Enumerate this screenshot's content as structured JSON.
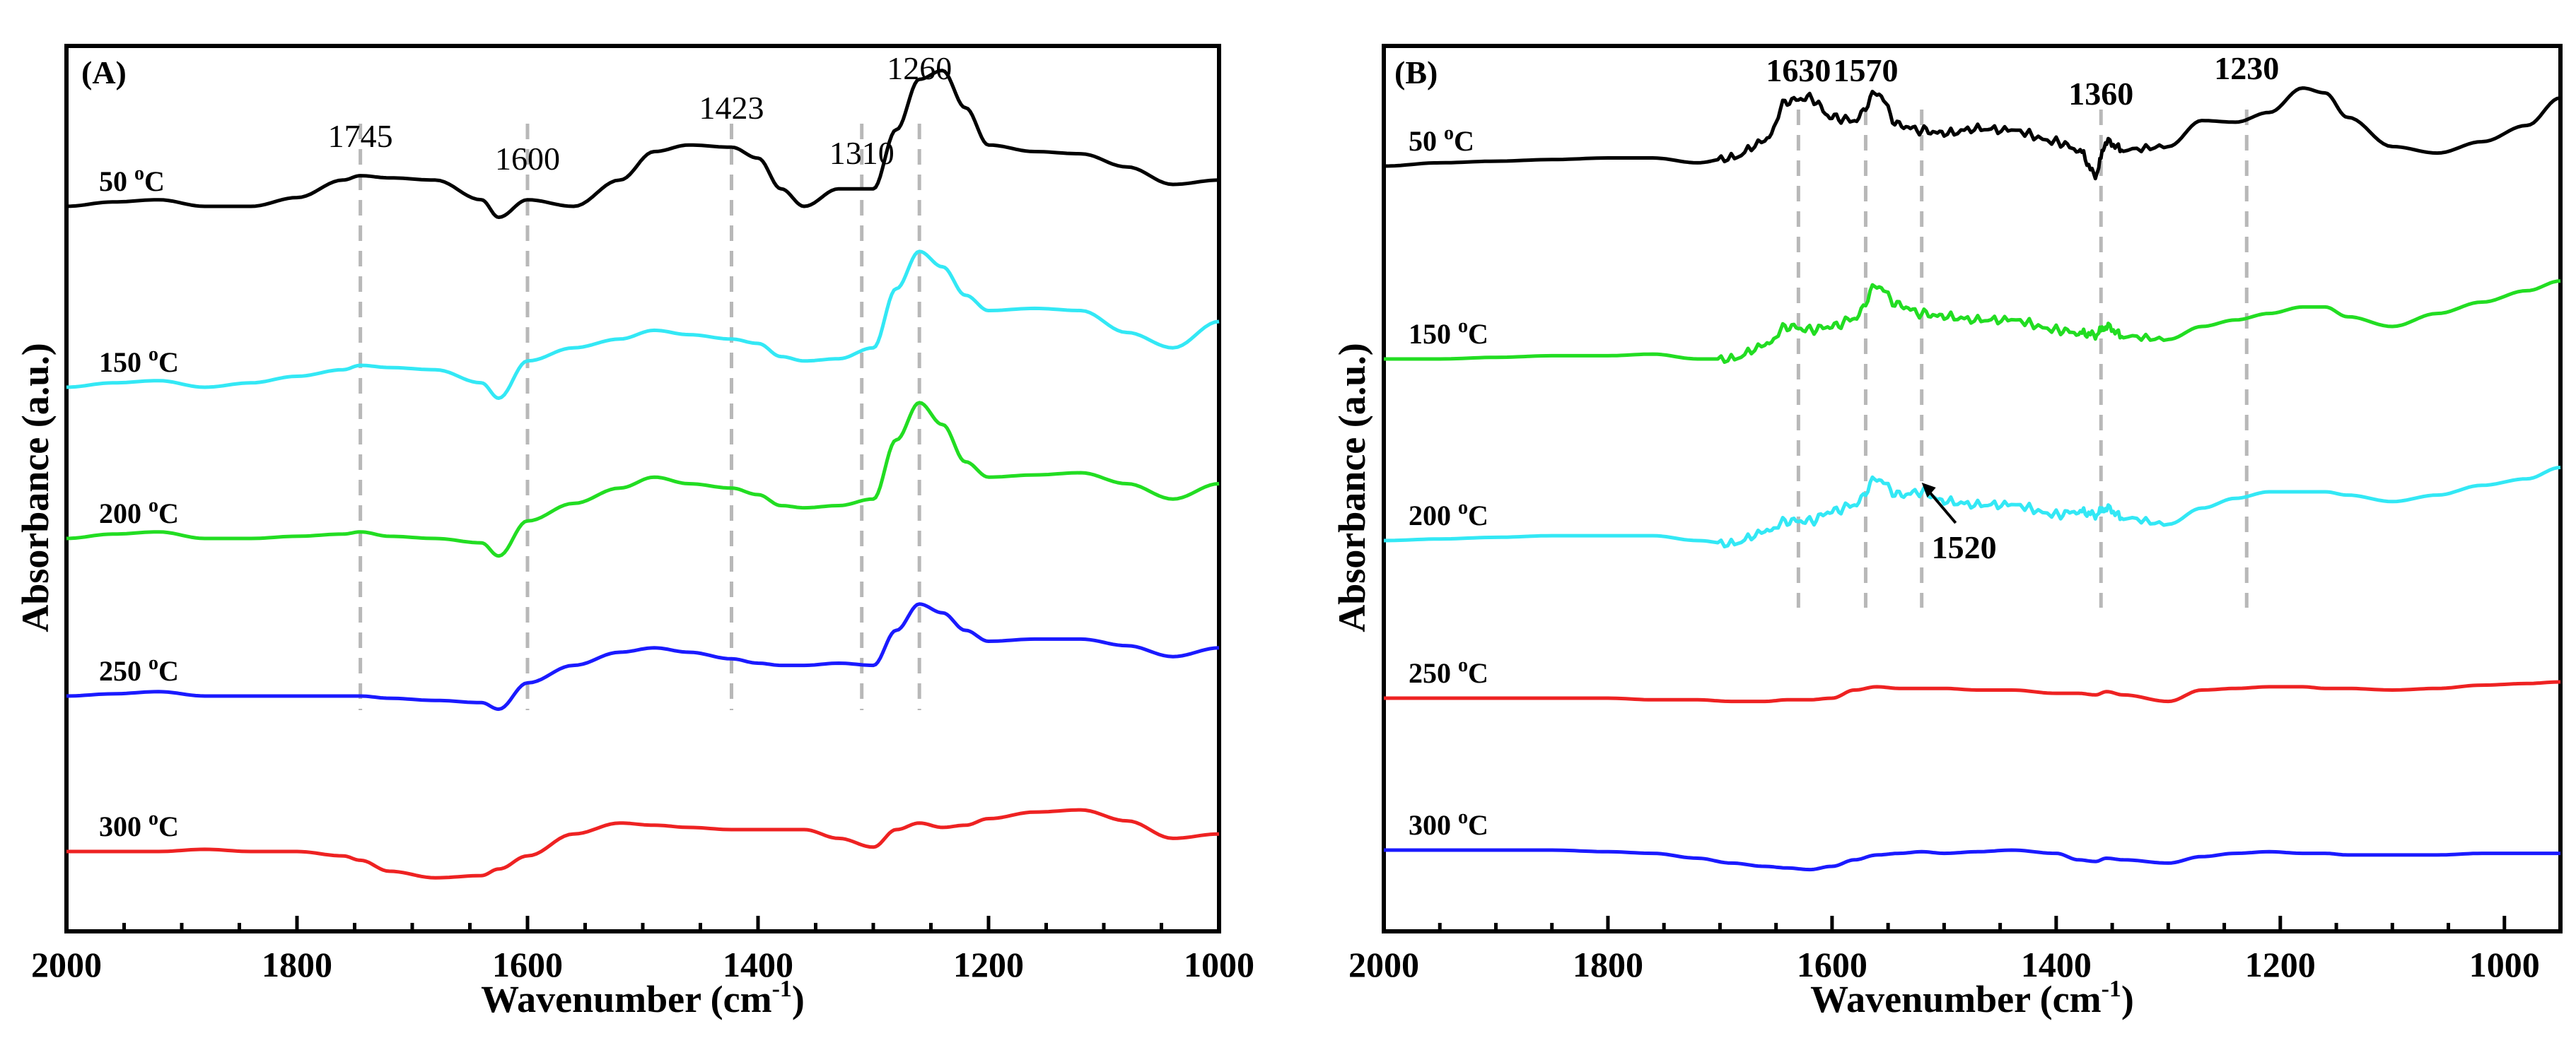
{
  "chart_data": [
    {
      "type": "line",
      "panel_label": "(A)",
      "xlabel_main": "Wavenumber (cm",
      "xlabel_sup": "-1",
      "xlabel_end": ")",
      "ylabel": "Absorbance (a.u.)",
      "xlim": [
        2000,
        1000
      ],
      "x_ticks": [
        "2000",
        "1800",
        "1600",
        "1400",
        "1200",
        "1000"
      ],
      "x_tick_values": [
        2000,
        1800,
        1600,
        1400,
        1200,
        1000
      ],
      "peak_lines": [
        1745,
        1600,
        1423,
        1310,
        1260
      ],
      "peak_labels": [
        "1745",
        "1600",
        "1423",
        "1310",
        "1260"
      ],
      "series": [
        {
          "name": "50 °C",
          "temp": "50",
          "unit_sup": "o",
          "unit": "C",
          "color": "#000000",
          "x": [
            2000,
            1960,
            1920,
            1880,
            1840,
            1800,
            1760,
            1745,
            1720,
            1680,
            1640,
            1625,
            1600,
            1560,
            1520,
            1490,
            1460,
            1423,
            1400,
            1380,
            1360,
            1330,
            1300,
            1280,
            1260,
            1240,
            1220,
            1200,
            1160,
            1120,
            1080,
            1040,
            1000
          ],
          "y": [
            0.0,
            0.02,
            0.03,
            0.0,
            0.0,
            0.04,
            0.12,
            0.14,
            0.13,
            0.12,
            0.03,
            -0.05,
            0.03,
            0.0,
            0.12,
            0.25,
            0.28,
            0.27,
            0.22,
            0.08,
            0.0,
            0.08,
            0.08,
            0.35,
            0.58,
            0.62,
            0.45,
            0.28,
            0.25,
            0.24,
            0.18,
            0.1,
            0.12
          ]
        },
        {
          "name": "150 °C",
          "temp": "150",
          "unit_sup": "o",
          "unit": "C",
          "color": "#33e8f5",
          "x": [
            2000,
            1960,
            1920,
            1880,
            1840,
            1800,
            1760,
            1745,
            1720,
            1680,
            1640,
            1625,
            1600,
            1560,
            1520,
            1490,
            1460,
            1423,
            1400,
            1380,
            1360,
            1330,
            1300,
            1280,
            1260,
            1240,
            1220,
            1200,
            1160,
            1120,
            1080,
            1040,
            1000
          ],
          "y": [
            0.0,
            0.02,
            0.03,
            0.0,
            0.02,
            0.05,
            0.08,
            0.1,
            0.09,
            0.08,
            0.02,
            -0.05,
            0.12,
            0.18,
            0.22,
            0.26,
            0.24,
            0.22,
            0.2,
            0.14,
            0.12,
            0.13,
            0.18,
            0.45,
            0.62,
            0.55,
            0.42,
            0.35,
            0.36,
            0.35,
            0.25,
            0.18,
            0.3
          ]
        },
        {
          "name": "200 °C",
          "temp": "200",
          "unit_sup": "o",
          "unit": "C",
          "color": "#22dd22",
          "x": [
            2000,
            1960,
            1920,
            1880,
            1840,
            1800,
            1760,
            1745,
            1720,
            1680,
            1640,
            1625,
            1600,
            1560,
            1520,
            1490,
            1460,
            1423,
            1400,
            1380,
            1360,
            1330,
            1300,
            1280,
            1260,
            1240,
            1220,
            1200,
            1160,
            1120,
            1080,
            1040,
            1000
          ],
          "y": [
            0.0,
            0.02,
            0.03,
            0.0,
            0.0,
            0.01,
            0.02,
            0.03,
            0.01,
            0.0,
            -0.02,
            -0.08,
            0.08,
            0.16,
            0.23,
            0.28,
            0.25,
            0.23,
            0.2,
            0.15,
            0.14,
            0.15,
            0.18,
            0.45,
            0.62,
            0.52,
            0.35,
            0.28,
            0.29,
            0.3,
            0.25,
            0.18,
            0.25
          ]
        },
        {
          "name": "250 °C",
          "temp": "250",
          "unit_sup": "o",
          "unit": "C",
          "color": "#1a1aff",
          "x": [
            2000,
            1960,
            1920,
            1880,
            1840,
            1800,
            1760,
            1745,
            1720,
            1680,
            1640,
            1625,
            1600,
            1560,
            1520,
            1490,
            1460,
            1423,
            1400,
            1380,
            1360,
            1330,
            1300,
            1280,
            1260,
            1240,
            1220,
            1200,
            1160,
            1120,
            1080,
            1040,
            1000
          ],
          "y": [
            0.0,
            0.01,
            0.02,
            0.0,
            0.0,
            0.0,
            0.0,
            0.0,
            -0.01,
            -0.02,
            -0.03,
            -0.06,
            0.06,
            0.14,
            0.2,
            0.22,
            0.2,
            0.17,
            0.15,
            0.14,
            0.14,
            0.15,
            0.14,
            0.3,
            0.42,
            0.38,
            0.3,
            0.25,
            0.26,
            0.26,
            0.23,
            0.18,
            0.22
          ]
        },
        {
          "name": "300 °C",
          "temp": "300",
          "unit_sup": "o",
          "unit": "C",
          "color": "#ee2222",
          "x": [
            2000,
            1960,
            1920,
            1880,
            1840,
            1800,
            1760,
            1745,
            1720,
            1680,
            1640,
            1625,
            1600,
            1560,
            1520,
            1490,
            1460,
            1423,
            1400,
            1380,
            1360,
            1330,
            1300,
            1280,
            1260,
            1240,
            1220,
            1200,
            1160,
            1120,
            1080,
            1040,
            1000
          ],
          "y": [
            0.0,
            0.0,
            0.0,
            0.01,
            0.0,
            0.0,
            -0.02,
            -0.04,
            -0.09,
            -0.12,
            -0.11,
            -0.08,
            -0.02,
            0.08,
            0.13,
            0.12,
            0.11,
            0.1,
            0.1,
            0.1,
            0.1,
            0.06,
            0.02,
            0.1,
            0.13,
            0.11,
            0.12,
            0.15,
            0.18,
            0.19,
            0.14,
            0.06,
            0.08
          ]
        }
      ]
    },
    {
      "type": "line",
      "panel_label": "(B)",
      "xlabel_main": "Wavenumber (cm",
      "xlabel_sup": "-1",
      "xlabel_end": ")",
      "ylabel": "Absorbance (a.u.)",
      "xlim": [
        2000,
        950
      ],
      "x_ticks": [
        "2000",
        "1800",
        "1600",
        "1400",
        "1200",
        "1000"
      ],
      "x_tick_values": [
        2000,
        1800,
        1600,
        1400,
        1200,
        1000
      ],
      "peak_lines": [
        1630,
        1570,
        1520,
        1360,
        1230
      ],
      "peak_labels": [
        "1630",
        "1570",
        "1360",
        "1230"
      ],
      "annotation": "1520",
      "series": [
        {
          "name": "50 °C",
          "temp": "50",
          "unit_sup": "o",
          "unit": "C",
          "color": "#000000",
          "x": [
            2000,
            1950,
            1900,
            1850,
            1800,
            1760,
            1720,
            1690,
            1660,
            1640,
            1620,
            1600,
            1580,
            1560,
            1540,
            1520,
            1500,
            1470,
            1440,
            1400,
            1380,
            1365,
            1355,
            1340,
            1300,
            1270,
            1240,
            1210,
            1180,
            1160,
            1140,
            1100,
            1060,
            1020,
            980,
            950
          ],
          "y": [
            0.0,
            0.02,
            0.03,
            0.04,
            0.05,
            0.05,
            0.02,
            0.05,
            0.15,
            0.4,
            0.42,
            0.3,
            0.28,
            0.45,
            0.25,
            0.22,
            0.2,
            0.23,
            0.22,
            0.15,
            0.1,
            -0.05,
            0.15,
            0.1,
            0.12,
            0.28,
            0.27,
            0.33,
            0.48,
            0.45,
            0.3,
            0.12,
            0.08,
            0.15,
            0.25,
            0.42
          ]
        },
        {
          "name": "150 °C",
          "temp": "150",
          "unit_sup": "o",
          "unit": "C",
          "color": "#22dd22",
          "x": [
            2000,
            1950,
            1900,
            1850,
            1800,
            1760,
            1720,
            1690,
            1660,
            1640,
            1620,
            1600,
            1580,
            1560,
            1540,
            1520,
            1500,
            1470,
            1440,
            1400,
            1380,
            1365,
            1355,
            1340,
            1300,
            1270,
            1240,
            1210,
            1180,
            1160,
            1140,
            1100,
            1060,
            1020,
            980,
            950
          ],
          "y": [
            0.0,
            0.0,
            0.01,
            0.02,
            0.02,
            0.03,
            0.0,
            0.0,
            0.08,
            0.2,
            0.18,
            0.2,
            0.25,
            0.45,
            0.33,
            0.28,
            0.26,
            0.24,
            0.24,
            0.18,
            0.16,
            0.15,
            0.2,
            0.14,
            0.12,
            0.2,
            0.24,
            0.28,
            0.32,
            0.32,
            0.26,
            0.2,
            0.28,
            0.35,
            0.42,
            0.48
          ]
        },
        {
          "name": "200 °C",
          "temp": "200",
          "unit_sup": "o",
          "unit": "C",
          "color": "#33e8f5",
          "x": [
            2000,
            1950,
            1900,
            1850,
            1800,
            1760,
            1720,
            1690,
            1660,
            1640,
            1620,
            1600,
            1580,
            1560,
            1540,
            1520,
            1500,
            1470,
            1440,
            1400,
            1380,
            1365,
            1355,
            1340,
            1300,
            1270,
            1240,
            1210,
            1180,
            1160,
            1140,
            1100,
            1060,
            1020,
            980,
            950
          ],
          "y": [
            0.0,
            0.01,
            0.02,
            0.03,
            0.03,
            0.03,
            0.0,
            -0.02,
            0.05,
            0.12,
            0.12,
            0.18,
            0.22,
            0.38,
            0.28,
            0.3,
            0.24,
            0.22,
            0.22,
            0.16,
            0.18,
            0.16,
            0.2,
            0.14,
            0.1,
            0.2,
            0.26,
            0.3,
            0.3,
            0.3,
            0.28,
            0.24,
            0.28,
            0.34,
            0.38,
            0.45
          ]
        },
        {
          "name": "250 °C",
          "temp": "250",
          "unit_sup": "o",
          "unit": "C",
          "color": "#ee2222",
          "x": [
            2000,
            1950,
            1900,
            1850,
            1800,
            1760,
            1720,
            1690,
            1660,
            1640,
            1620,
            1600,
            1580,
            1560,
            1540,
            1520,
            1500,
            1470,
            1440,
            1400,
            1380,
            1365,
            1355,
            1340,
            1300,
            1270,
            1240,
            1210,
            1180,
            1160,
            1140,
            1100,
            1060,
            1020,
            980,
            950
          ],
          "y": [
            0.0,
            0.0,
            0.0,
            0.0,
            0.0,
            -0.01,
            -0.01,
            -0.02,
            -0.02,
            -0.01,
            -0.01,
            0.0,
            0.05,
            0.07,
            0.06,
            0.06,
            0.06,
            0.05,
            0.05,
            0.03,
            0.03,
            0.02,
            0.04,
            0.02,
            -0.02,
            0.05,
            0.06,
            0.07,
            0.07,
            0.06,
            0.06,
            0.05,
            0.06,
            0.08,
            0.09,
            0.1
          ]
        },
        {
          "name": "300 °C",
          "temp": "300",
          "unit_sup": "o",
          "unit": "C",
          "color": "#1a1aff",
          "x": [
            2000,
            1950,
            1900,
            1850,
            1800,
            1760,
            1720,
            1690,
            1660,
            1640,
            1620,
            1600,
            1580,
            1560,
            1540,
            1520,
            1500,
            1470,
            1440,
            1400,
            1380,
            1365,
            1355,
            1340,
            1300,
            1270,
            1240,
            1210,
            1180,
            1160,
            1140,
            1100,
            1060,
            1020,
            980,
            950
          ],
          "y": [
            0.0,
            0.0,
            0.0,
            0.0,
            -0.01,
            -0.02,
            -0.05,
            -0.08,
            -0.1,
            -0.11,
            -0.12,
            -0.1,
            -0.06,
            -0.03,
            -0.02,
            -0.01,
            -0.02,
            -0.01,
            0.0,
            -0.02,
            -0.06,
            -0.07,
            -0.05,
            -0.06,
            -0.08,
            -0.04,
            -0.02,
            -0.01,
            -0.02,
            -0.02,
            -0.03,
            -0.03,
            -0.03,
            -0.02,
            -0.02,
            -0.02
          ]
        }
      ]
    }
  ]
}
